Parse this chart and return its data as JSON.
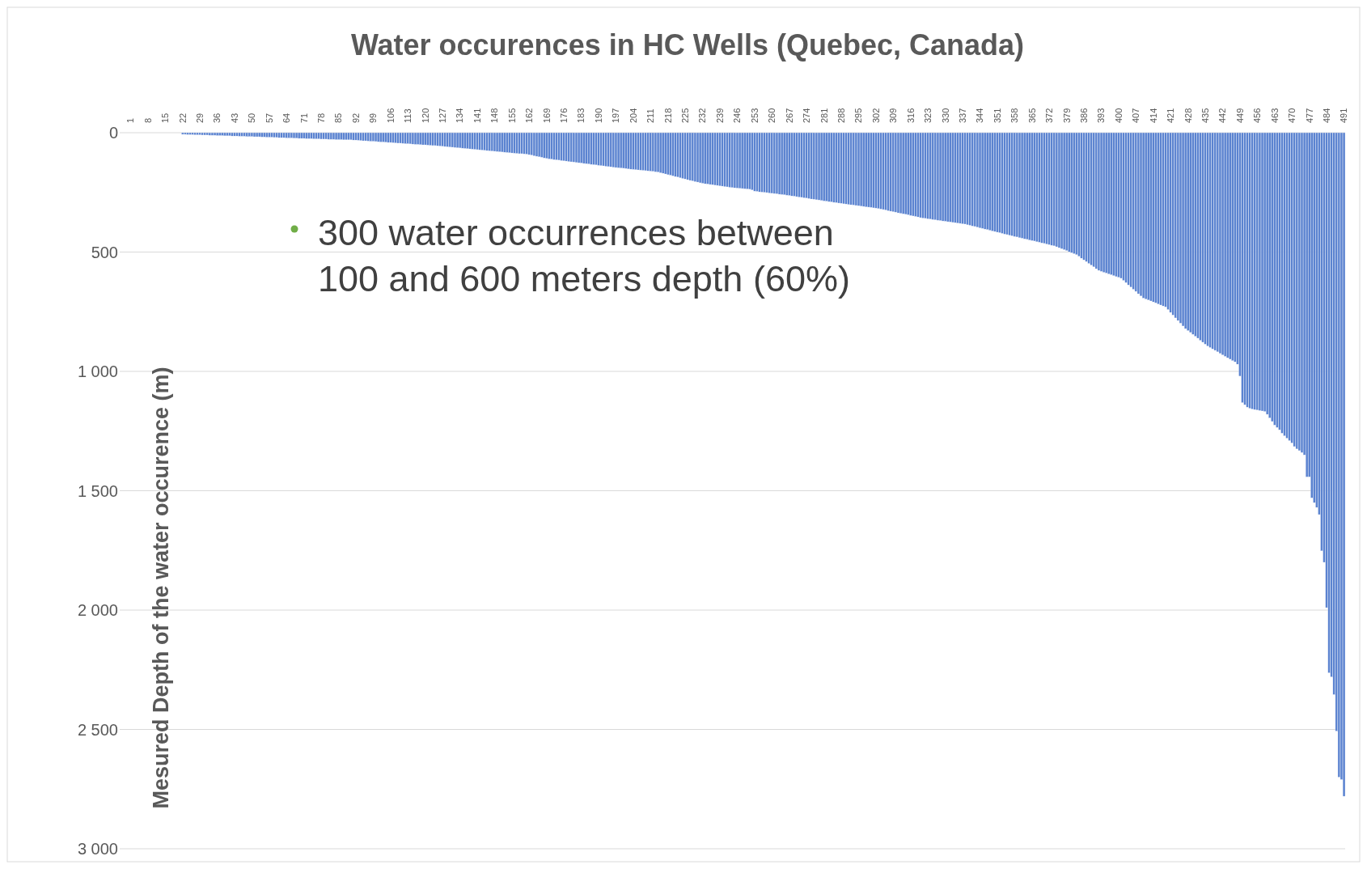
{
  "chart_data": {
    "type": "bar",
    "title": "Water occurences in HC Wells (Quebec, Canada)",
    "ylabel": "Mesured Depth of the water occurence (m)",
    "annotations": [
      "300 water occurrences between 100 and 600 meters depth (60%)"
    ],
    "categories": [
      "1",
      null,
      null,
      null,
      null,
      null,
      null,
      "8",
      null,
      null,
      null,
      null,
      null,
      null,
      "15",
      null,
      null,
      null,
      null,
      null,
      null,
      "22",
      null,
      null,
      null,
      null,
      null,
      null,
      "29",
      null,
      null,
      null,
      null,
      null,
      null,
      "36",
      null,
      null,
      null,
      null,
      null,
      null,
      "43",
      null,
      null,
      null,
      null,
      null,
      null,
      "50",
      null,
      null,
      null,
      null,
      null,
      null,
      "57",
      null,
      null,
      null,
      null,
      null,
      null,
      "64",
      null,
      null,
      null,
      null,
      null,
      null,
      "71",
      null,
      null,
      null,
      null,
      null,
      null,
      "78",
      null,
      null,
      null,
      null,
      null,
      null,
      "85",
      null,
      null,
      null,
      null,
      null,
      null,
      "92",
      null,
      null,
      null,
      null,
      null,
      null,
      "99",
      null,
      null,
      null,
      null,
      null,
      null,
      "106",
      null,
      null,
      null,
      null,
      null,
      null,
      "113",
      null,
      null,
      null,
      null,
      null,
      null,
      "120",
      null,
      null,
      null,
      null,
      null,
      null,
      "127",
      null,
      null,
      null,
      null,
      null,
      null,
      "134",
      null,
      null,
      null,
      null,
      null,
      null,
      "141",
      null,
      null,
      null,
      null,
      null,
      null,
      "148",
      null,
      null,
      null,
      null,
      null,
      null,
      "155",
      null,
      null,
      null,
      null,
      null,
      null,
      "162",
      null,
      null,
      null,
      null,
      null,
      null,
      "169",
      null,
      null,
      null,
      null,
      null,
      null,
      "176",
      null,
      null,
      null,
      null,
      null,
      null,
      "183",
      null,
      null,
      null,
      null,
      null,
      null,
      "190",
      null,
      null,
      null,
      null,
      null,
      null,
      "197",
      null,
      null,
      null,
      null,
      null,
      null,
      "204",
      null,
      null,
      null,
      null,
      null,
      null,
      "211",
      null,
      null,
      null,
      null,
      null,
      null,
      "218",
      null,
      null,
      null,
      null,
      null,
      null,
      "225",
      null,
      null,
      null,
      null,
      null,
      null,
      "232",
      null,
      null,
      null,
      null,
      null,
      null,
      "239",
      null,
      null,
      null,
      null,
      null,
      null,
      "246",
      null,
      null,
      null,
      null,
      null,
      null,
      "253",
      null,
      null,
      null,
      null,
      null,
      null,
      "260",
      null,
      null,
      null,
      null,
      null,
      null,
      "267",
      null,
      null,
      null,
      null,
      null,
      null,
      "274",
      null,
      null,
      null,
      null,
      null,
      null,
      "281",
      null,
      null,
      null,
      null,
      null,
      null,
      "288",
      null,
      null,
      null,
      null,
      null,
      null,
      "295",
      null,
      null,
      null,
      null,
      null,
      null,
      "302",
      null,
      null,
      null,
      null,
      null,
      null,
      "309",
      null,
      null,
      null,
      null,
      null,
      null,
      "316",
      null,
      null,
      null,
      null,
      null,
      null,
      "323",
      null,
      null,
      null,
      null,
      null,
      null,
      "330",
      null,
      null,
      null,
      null,
      null,
      null,
      "337",
      null,
      null,
      null,
      null,
      null,
      null,
      "344",
      null,
      null,
      null,
      null,
      null,
      null,
      "351",
      null,
      null,
      null,
      null,
      null,
      null,
      "358",
      null,
      null,
      null,
      null,
      null,
      null,
      "365",
      null,
      null,
      null,
      null,
      null,
      null,
      "372",
      null,
      null,
      null,
      null,
      null,
      null,
      "379",
      null,
      null,
      null,
      null,
      null,
      null,
      "386",
      null,
      null,
      null,
      null,
      null,
      null,
      "393",
      null,
      null,
      null,
      null,
      null,
      null,
      "400",
      null,
      null,
      null,
      null,
      null,
      null,
      "407",
      null,
      null,
      null,
      null,
      null,
      null,
      "414",
      null,
      null,
      null,
      null,
      null,
      null,
      "421",
      null,
      null,
      null,
      null,
      null,
      null,
      "428",
      null,
      null,
      null,
      null,
      null,
      null,
      "435",
      null,
      null,
      null,
      null,
      null,
      null,
      "442",
      null,
      null,
      null,
      null,
      null,
      null,
      "449",
      null,
      null,
      null,
      null,
      null,
      null,
      "456",
      null,
      null,
      null,
      null,
      null,
      null,
      "463",
      null,
      null,
      null,
      null,
      null,
      null,
      "470",
      null,
      null,
      null,
      null,
      null,
      null,
      "477",
      null,
      null,
      null,
      null,
      null,
      null,
      "484",
      null,
      null,
      null,
      null,
      null,
      null,
      "491"
    ],
    "values": [
      0,
      0,
      0,
      0,
      0,
      0,
      0,
      0,
      0,
      0,
      0,
      0,
      0,
      0,
      0,
      0,
      0,
      0,
      0,
      0,
      0,
      7,
      7,
      8,
      8,
      8,
      9,
      9,
      9,
      10,
      10,
      10,
      11,
      11,
      11,
      12,
      12,
      12,
      13,
      13,
      13,
      14,
      14,
      14,
      15,
      15,
      15,
      16,
      16,
      16,
      17,
      17,
      17,
      18,
      18,
      19,
      19,
      19,
      20,
      20,
      21,
      21,
      21,
      22,
      22,
      22,
      23,
      23,
      24,
      24,
      24,
      25,
      25,
      25,
      26,
      26,
      26,
      27,
      27,
      27,
      28,
      28,
      28,
      29,
      29,
      29,
      30,
      30,
      30,
      30,
      31,
      31,
      32,
      33,
      34,
      34,
      35,
      36,
      36,
      37,
      38,
      39,
      39,
      40,
      41,
      41,
      42,
      43,
      44,
      44,
      45,
      46,
      46,
      47,
      48,
      49,
      49,
      50,
      51,
      51,
      52,
      53,
      54,
      54,
      55,
      56,
      57,
      58,
      59,
      60,
      61,
      62,
      63,
      64,
      65,
      66,
      67,
      68,
      69,
      70,
      71,
      72,
      73,
      74,
      75,
      76,
      77,
      78,
      79,
      80,
      81,
      82,
      83,
      84,
      85,
      86,
      87,
      88,
      88,
      89,
      90,
      92,
      94,
      97,
      99,
      101,
      103,
      106,
      108,
      110,
      111,
      113,
      114,
      115,
      117,
      118,
      119,
      121,
      122,
      123,
      125,
      126,
      127,
      129,
      130,
      131,
      133,
      134,
      135,
      137,
      138,
      139,
      141,
      142,
      143,
      145,
      146,
      147,
      148,
      149,
      150,
      152,
      153,
      154,
      155,
      156,
      157,
      158,
      159,
      160,
      161,
      162,
      164,
      165,
      168,
      170,
      173,
      176,
      178,
      181,
      184,
      186,
      189,
      192,
      194,
      197,
      200,
      202,
      205,
      207,
      210,
      212,
      214,
      215,
      217,
      218,
      220,
      221,
      223,
      224,
      226,
      227,
      229,
      230,
      231,
      232,
      233,
      234,
      235,
      236,
      237,
      240,
      245,
      246,
      248,
      249,
      250,
      251,
      253,
      254,
      255,
      256,
      258,
      259,
      260,
      262,
      263,
      265,
      266,
      268,
      270,
      271,
      273,
      274,
      276,
      278,
      279,
      281,
      282,
      284,
      286,
      287,
      289,
      290,
      292,
      293,
      295,
      296,
      298,
      299,
      301,
      302,
      303,
      305,
      306,
      308,
      309,
      311,
      312,
      313,
      315,
      316,
      318,
      320,
      322,
      324,
      327,
      329,
      331,
      333,
      336,
      338,
      340,
      342,
      344,
      347,
      349,
      351,
      353,
      356,
      358,
      359,
      361,
      362,
      364,
      365,
      367,
      368,
      370,
      371,
      373,
      374,
      376,
      377,
      379,
      380,
      382,
      383,
      386,
      388,
      391,
      393,
      396,
      399,
      401,
      404,
      406,
      409,
      412,
      414,
      417,
      419,
      422,
      425,
      427,
      430,
      432,
      435,
      437,
      440,
      442,
      445,
      447,
      450,
      452,
      454,
      457,
      459,
      462,
      464,
      467,
      469,
      472,
      474,
      478,
      482,
      486,
      490,
      494,
      499,
      503,
      507,
      511,
      518,
      526,
      533,
      540,
      548,
      555,
      562,
      570,
      577,
      581,
      585,
      588,
      592,
      595,
      599,
      603,
      606,
      610,
      619,
      628,
      638,
      647,
      656,
      665,
      675,
      684,
      693,
      697,
      701,
      705,
      709,
      713,
      718,
      722,
      726,
      730,
      741,
      753,
      764,
      776,
      787,
      798,
      810,
      821,
      829,
      837,
      845,
      853,
      861,
      870,
      878,
      886,
      894,
      900,
      906,
      912,
      918,
      925,
      931,
      937,
      943,
      949,
      955,
      960,
      970,
      1020,
      1131,
      1140,
      1150,
      1155,
      1158,
      1160,
      1162,
      1164,
      1166,
      1168,
      1180,
      1195,
      1210,
      1225,
      1235,
      1245,
      1259,
      1270,
      1280,
      1290,
      1300,
      1315,
      1325,
      1332,
      1340,
      1350,
      1442,
      1442,
      1530,
      1550,
      1570,
      1600,
      1752,
      1800,
      1990,
      2263,
      2280,
      2354,
      2507,
      2700,
      2710,
      2780
    ],
    "color": "#5b83d0",
    "ylim": [
      3000,
      0
    ],
    "yticks": [
      0,
      500,
      {
        "value": 1000,
        "label": "1 000"
      },
      {
        "value": 1500,
        "label": "1 500"
      },
      {
        "value": 2000,
        "label": "2 000"
      },
      {
        "value": 2500,
        "label": "2 500"
      },
      {
        "value": 3000,
        "label": "3 000"
      }
    ],
    "grid": "y"
  }
}
